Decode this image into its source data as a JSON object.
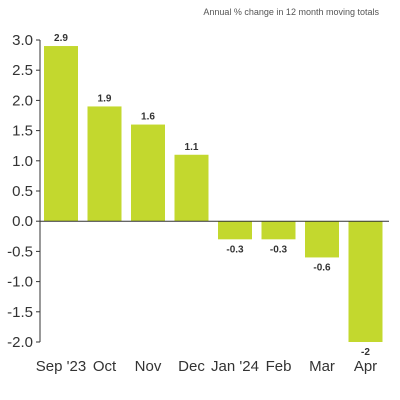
{
  "chart_data": {
    "type": "bar",
    "subtitle": "Annual % change in 12 month moving totals",
    "categories": [
      "Sep '23",
      "Oct",
      "Nov",
      "Dec",
      "Jan '24",
      "Feb",
      "Mar",
      "Apr"
    ],
    "values": [
      2.9,
      1.9,
      1.6,
      1.1,
      -0.3,
      -0.3,
      -0.6,
      -2
    ],
    "value_labels": [
      "2.9",
      "1.9",
      "1.6",
      "1.1",
      "-0.3",
      "-0.3",
      "-0.6",
      "-2"
    ],
    "yticks": [
      3.0,
      2.5,
      2.0,
      1.5,
      1.0,
      0.5,
      0.0,
      -0.5,
      -1.0,
      -1.5,
      -2.0
    ],
    "ytick_labels": [
      "3.0",
      "2.5",
      "2.0",
      "1.5",
      "1.0",
      "0.5",
      "0.0",
      "-0.5",
      "-1.0",
      "-1.5",
      "-2.0"
    ],
    "ylim": [
      -2.0,
      3.0
    ],
    "grid": false,
    "bar_color": "#c3d82e",
    "axis_color": "#333333"
  }
}
